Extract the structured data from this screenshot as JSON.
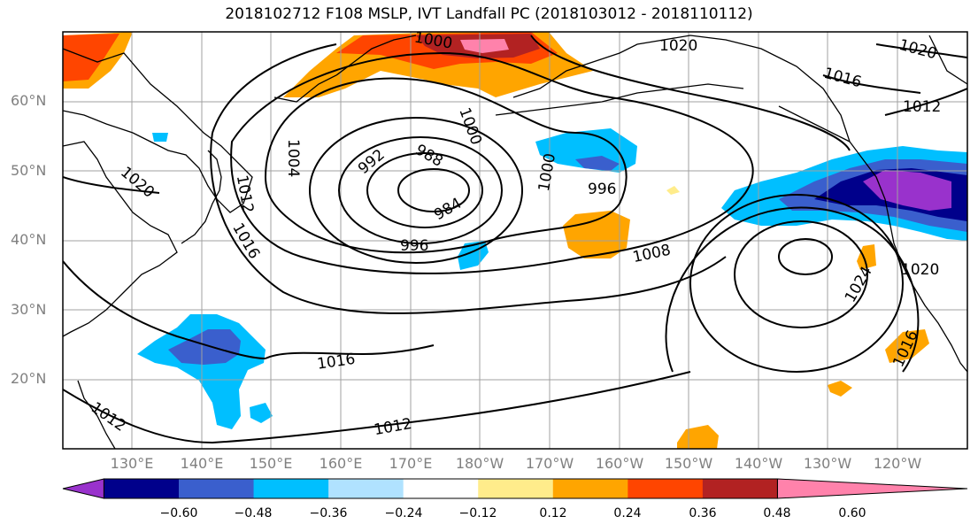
{
  "title": "2018102712 F108 MSLP, IVT Landfall PC (2018103012 - 2018110112)",
  "map": {
    "projection": "plate-carree",
    "lon_range": [
      121,
      251
    ],
    "lat_range": [
      10,
      70
    ],
    "lat_labels": [
      "60°N",
      "50°N",
      "40°N",
      "30°N",
      "20°N"
    ],
    "lon_labels": [
      "130°E",
      "140°E",
      "150°E",
      "160°E",
      "170°E",
      "180°W",
      "170°W",
      "160°W",
      "150°W",
      "140°W",
      "130°W",
      "120°W"
    ],
    "grid": true
  },
  "contours": {
    "variable": "MSLP",
    "labels": [
      "1000",
      "1020",
      "1020",
      "1016",
      "1012",
      "1004",
      "992",
      "988",
      "984",
      "1000",
      "1000",
      "996",
      "1020",
      "1012",
      "1016",
      "996",
      "1008",
      "1024",
      "1020",
      "1016",
      "1016",
      "1012"
    ],
    "low_center_value": 984
  },
  "colorbar": {
    "tick_labels": [
      "−0.60",
      "−0.48",
      "−0.36",
      "−0.24",
      "−0.12",
      "0.12",
      "0.24",
      "0.36",
      "0.48",
      "0.60"
    ],
    "colors": [
      "#9932cc",
      "#00008b",
      "#3a5fcd",
      "#00bfff",
      "#b0e2ff",
      "#ffffff",
      "#ffec8b",
      "#ffa500",
      "#ff4500",
      "#b22222",
      "#ff82ab"
    ],
    "extend": "both"
  }
}
